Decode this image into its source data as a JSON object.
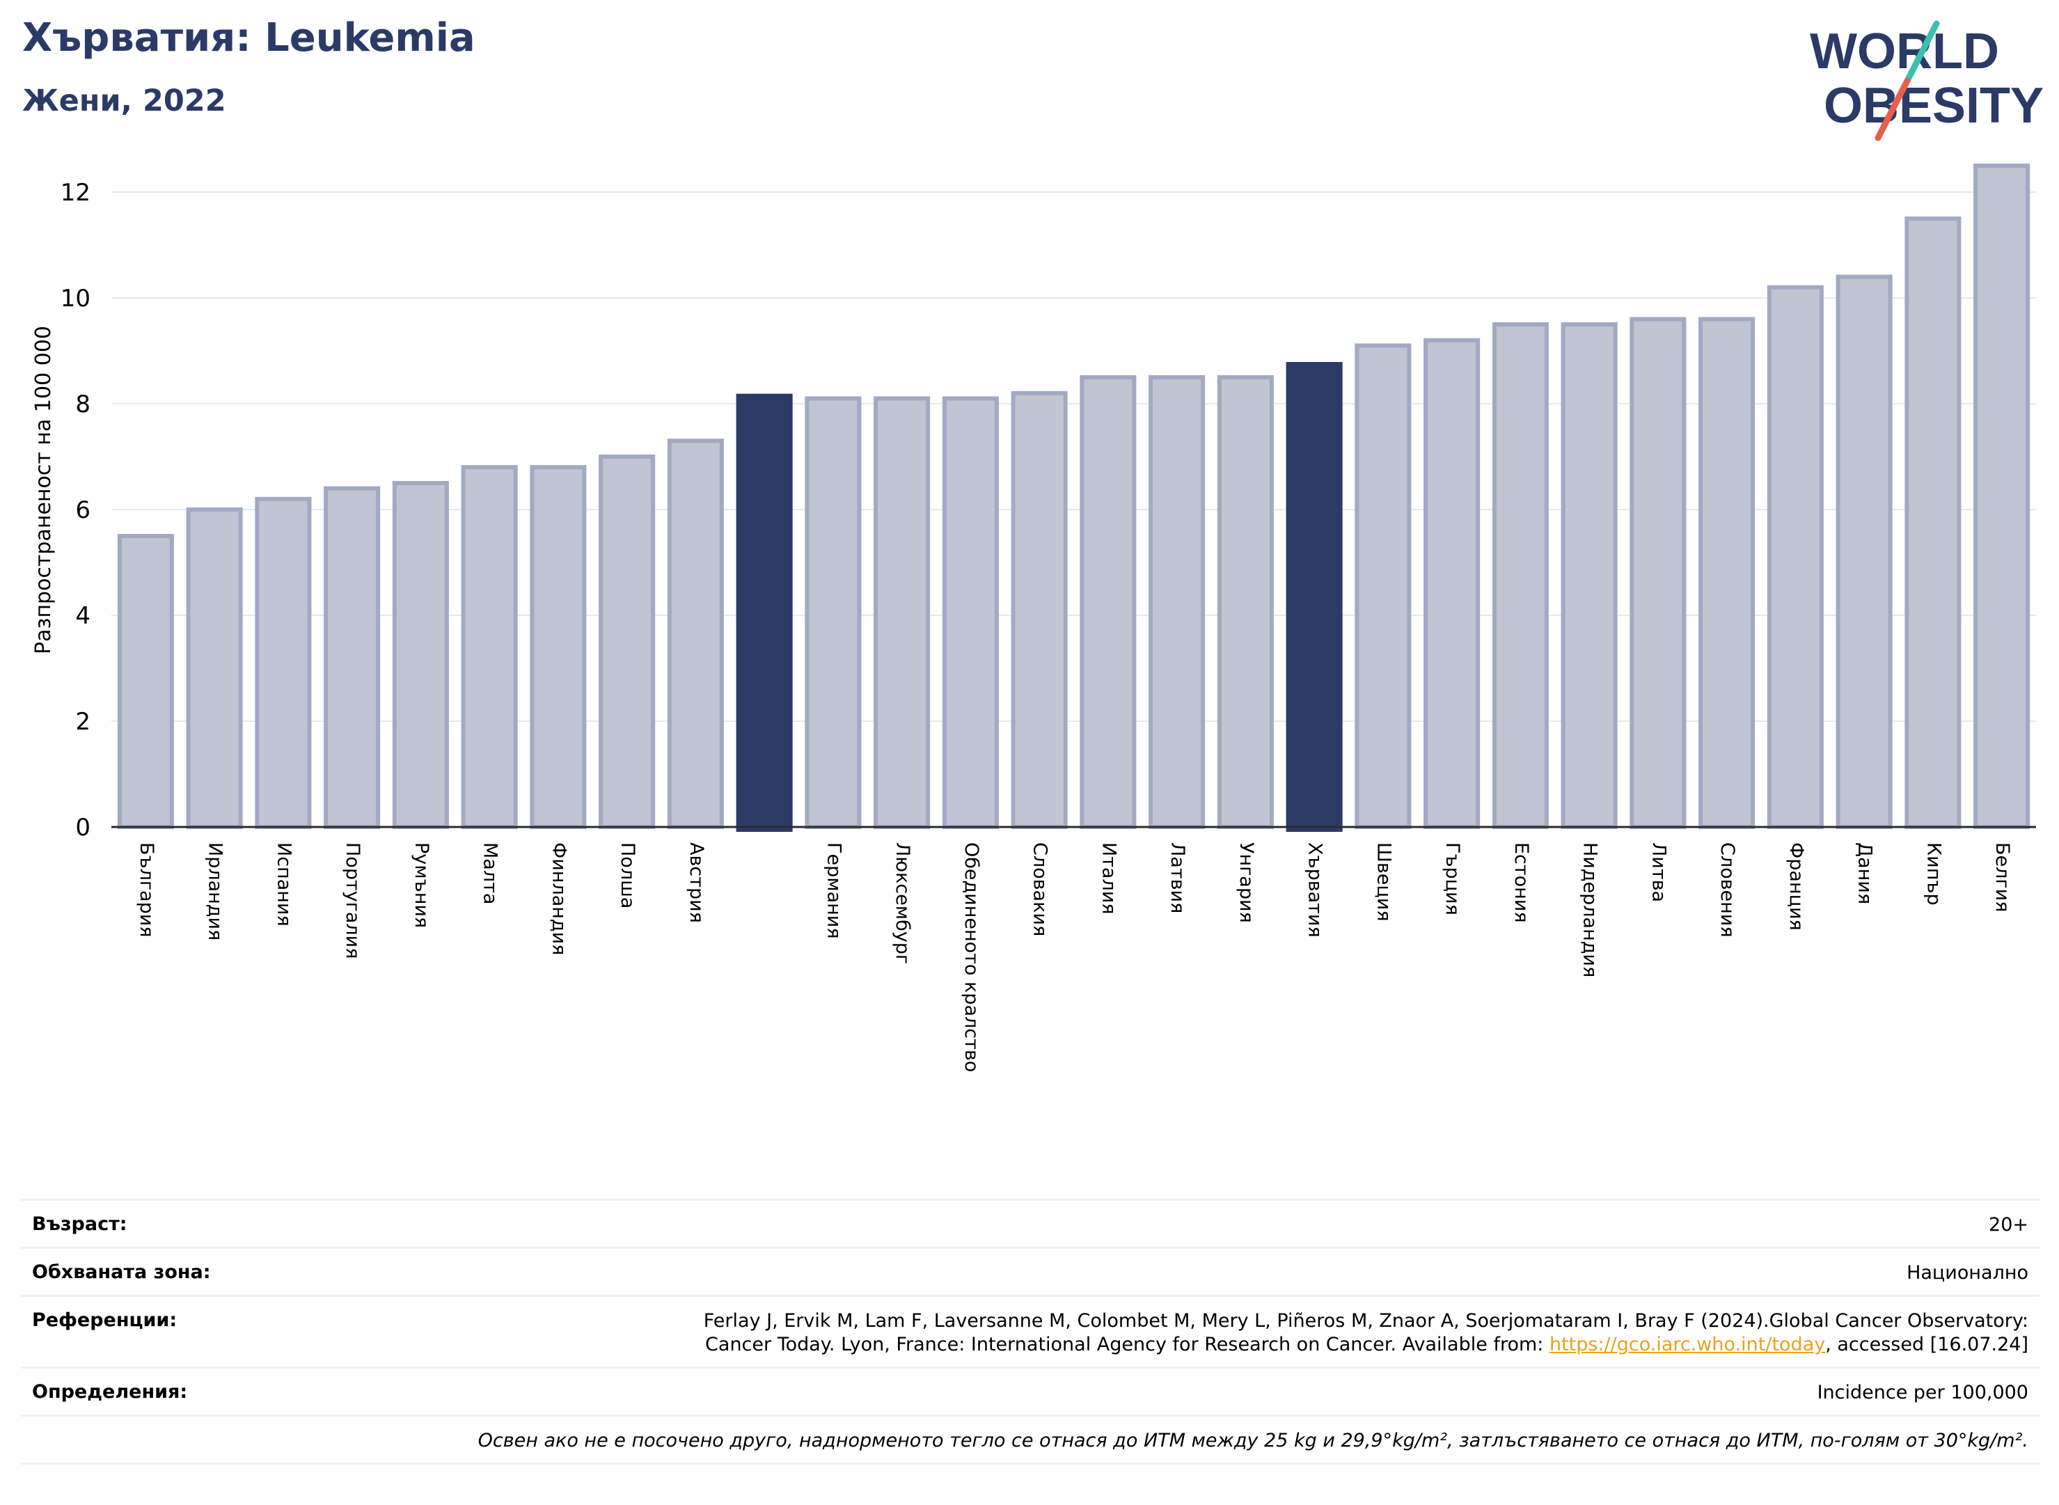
{
  "header": {
    "title": "Хърватия: Leukemia",
    "subtitle": "Жени, 2022",
    "logo_line1": "WORLD",
    "logo_line2": "OBESITY"
  },
  "colors": {
    "bar_default": "#c0c4d3",
    "bar_default_edge": "#a3a9c2",
    "bar_highlight": "#2b3a67",
    "title": "#2b3a67",
    "link": "#e8a21c",
    "logo_slash_teal": "#3bbfb0",
    "logo_slash_red": "#e8604c"
  },
  "chart_data": {
    "type": "bar",
    "title": "Хърватия: Leukemia",
    "subtitle": "Жени, 2022",
    "ylabel": "Разпространеност  на 100 000",
    "ylim": [
      0,
      13
    ],
    "yticks": [
      0,
      2,
      4,
      6,
      8,
      10,
      12
    ],
    "grid": true,
    "categories": [
      "България",
      "Ирландия",
      "Испания",
      "Португалия",
      "Румъния",
      "Малта",
      "Финландия",
      "Полша",
      "Австрия",
      "",
      "Германия",
      "Люксембург",
      "Обединеното кралство",
      "Словакия",
      "Италия",
      "Латвия",
      "Унгария",
      "Хърватия",
      "Швеция",
      "Гърция",
      "Естония",
      "Нидерландия",
      "Литва",
      "Словения",
      "Франция",
      "Дания",
      "Кипър",
      "Белгия"
    ],
    "values": [
      5.5,
      6.0,
      6.2,
      6.4,
      6.5,
      6.8,
      6.8,
      7.0,
      7.3,
      8.15,
      8.1,
      8.1,
      8.1,
      8.2,
      8.5,
      8.5,
      8.5,
      8.75,
      9.1,
      9.2,
      9.5,
      9.5,
      9.6,
      9.6,
      10.2,
      10.4,
      11.5,
      12.5
    ],
    "highlighted": [
      9,
      17
    ]
  },
  "table": {
    "rows": [
      {
        "label": "Възраст:",
        "value": "20+"
      },
      {
        "label": "Обхваната зона:",
        "value": "Национално"
      },
      {
        "label": "Референции:",
        "line1": "Ferlay J, Ervik M, Lam F, Laversanne M, Colombet M, Mery L, Piñeros M, Znaor A, Soerjomataram I, Bray F (2024).Global Cancer Observatory:",
        "line2_pre": "Cancer Today. Lyon, France: International Agency for Research on Cancer. Available from: ",
        "link": "https://gco.iarc.who.int/today",
        "line2_post": ", accessed [16.07.24]"
      },
      {
        "label": "Определения:",
        "value": "Incidence per 100,000"
      }
    ],
    "note": "Освен ако не е посочено друго, наднорменото тегло се отнася до ИТМ между 25 kg и 29,9°kg/m², затлъстяването се отнася до ИТМ, по-голям от 30°kg/m²."
  }
}
